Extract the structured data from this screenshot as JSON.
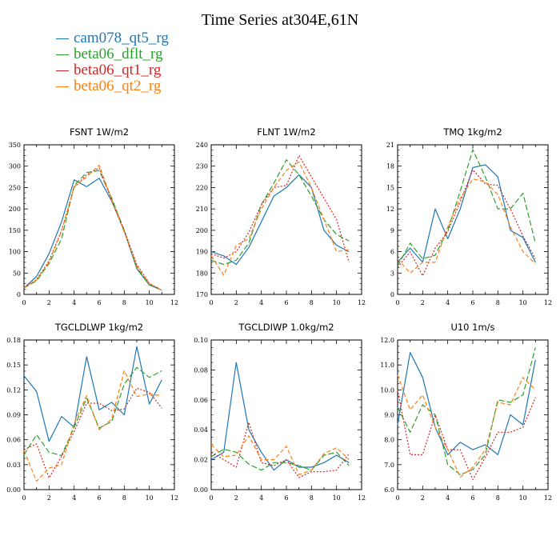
{
  "title": "Time Series at304E,61N",
  "legend": [
    {
      "name": "cam078_qt5_rg",
      "color": "#1f77b4"
    },
    {
      "name": "beta06_dflt_rg",
      "color": "#2ca02c"
    },
    {
      "name": "beta06_qt1_rg",
      "color": "#d62728"
    },
    {
      "name": "beta06_qt2_rg",
      "color": "#ff7f0e"
    }
  ],
  "chart_data": [
    {
      "type": "line",
      "title": "FSNT   1W/m2",
      "x": [
        0,
        1,
        2,
        3,
        4,
        5,
        6,
        7,
        8,
        9,
        10,
        11
      ],
      "xlim": [
        0,
        12
      ],
      "xticks": [
        0,
        2,
        4,
        6,
        8,
        10,
        12
      ],
      "ylim": [
        0,
        350
      ],
      "yticks": [
        0,
        50,
        100,
        150,
        200,
        250,
        300,
        350
      ],
      "ytick_labels": [
        "0",
        "50",
        "100",
        "150",
        "200",
        "250",
        "300",
        "350"
      ],
      "series": [
        {
          "name": "cam078_qt5_rg",
          "values": [
            15,
            42,
            95,
            170,
            268,
            252,
            272,
            218,
            148,
            60,
            22,
            10
          ]
        },
        {
          "name": "beta06_dflt_rg",
          "values": [
            15,
            32,
            72,
            130,
            255,
            285,
            290,
            225,
            150,
            62,
            23,
            10
          ]
        },
        {
          "name": "beta06_qt1_rg",
          "values": [
            15,
            35,
            78,
            150,
            250,
            280,
            296,
            220,
            150,
            70,
            26,
            10
          ]
        },
        {
          "name": "beta06_qt2_rg",
          "values": [
            15,
            34,
            75,
            148,
            252,
            275,
            302,
            222,
            146,
            66,
            25,
            10
          ]
        }
      ]
    },
    {
      "type": "line",
      "title": "FLNT   1W/m2",
      "x": [
        0,
        1,
        2,
        3,
        4,
        5,
        6,
        7,
        8,
        9,
        10,
        11
      ],
      "xlim": [
        0,
        12
      ],
      "xticks": [
        0,
        2,
        4,
        6,
        8,
        10,
        12
      ],
      "ylim": [
        170,
        240
      ],
      "yticks": [
        170,
        180,
        190,
        200,
        210,
        220,
        230,
        240
      ],
      "ytick_labels": [
        "170",
        "180",
        "190",
        "200",
        "210",
        "220",
        "230",
        "240"
      ],
      "series": [
        {
          "name": "cam078_qt5_rg",
          "values": [
            190,
            188,
            184,
            192,
            204,
            216,
            220,
            226,
            220,
            200,
            193,
            190
          ]
        },
        {
          "name": "beta06_dflt_rg",
          "values": [
            186,
            184,
            186,
            194,
            212,
            222,
            233,
            226,
            216,
            205,
            198,
            195
          ]
        },
        {
          "name": "beta06_qt1_rg",
          "values": [
            189,
            187,
            190,
            199,
            212,
            220,
            221,
            235,
            225,
            215,
            205,
            185
          ]
        },
        {
          "name": "beta06_qt2_rg",
          "values": [
            188,
            179,
            193,
            196,
            210,
            220,
            228,
            232,
            220,
            205,
            190,
            191
          ]
        }
      ]
    },
    {
      "type": "line",
      "title": "TMQ   1kg/m2",
      "x": [
        0,
        1,
        2,
        3,
        4,
        5,
        6,
        7,
        8,
        9,
        10,
        11
      ],
      "xlim": [
        0,
        12
      ],
      "xticks": [
        0,
        2,
        4,
        6,
        8,
        10,
        12
      ],
      "ylim": [
        0,
        21
      ],
      "yticks": [
        0,
        3,
        6,
        9,
        12,
        15,
        18,
        21
      ],
      "ytick_labels": [
        "0",
        "3",
        "6",
        "9",
        "12",
        "15",
        "18",
        "21"
      ],
      "series": [
        {
          "name": "cam078_qt5_rg",
          "values": [
            4.5,
            6.5,
            4.5,
            12.0,
            7.8,
            12.0,
            17.8,
            18.2,
            16.5,
            9.0,
            8.0,
            4.5
          ]
        },
        {
          "name": "beta06_dflt_rg",
          "values": [
            4.0,
            7.2,
            5.0,
            5.5,
            9.0,
            14.5,
            20.3,
            16.5,
            12.0,
            12.0,
            14.2,
            7.2
          ]
        },
        {
          "name": "beta06_qt1_rg",
          "values": [
            3.8,
            6.0,
            2.6,
            6.5,
            8.8,
            13.0,
            17.5,
            15.5,
            15.3,
            12.0,
            8.2,
            5.0
          ]
        },
        {
          "name": "beta06_qt2_rg",
          "values": [
            5.0,
            3.0,
            4.5,
            4.5,
            9.5,
            13.5,
            16.2,
            15.8,
            14.0,
            9.5,
            6.0,
            4.3
          ]
        }
      ]
    },
    {
      "type": "line",
      "title": "TGCLDLWP   1kg/m2",
      "x": [
        0,
        1,
        2,
        3,
        4,
        5,
        6,
        7,
        8,
        9,
        10,
        11
      ],
      "xlim": [
        0,
        12
      ],
      "xticks": [
        0,
        2,
        4,
        6,
        8,
        10,
        12
      ],
      "ylim": [
        0,
        0.18
      ],
      "yticks": [
        0,
        0.03,
        0.06,
        0.09,
        0.12,
        0.15,
        0.18
      ],
      "ytick_labels": [
        "0.00",
        "0.03",
        "0.06",
        "0.09",
        "0.12",
        "0.15",
        "0.18"
      ],
      "series": [
        {
          "name": "cam078_qt5_rg",
          "values": [
            0.137,
            0.118,
            0.058,
            0.088,
            0.075,
            0.16,
            0.096,
            0.105,
            0.09,
            0.172,
            0.103,
            0.132
          ]
        },
        {
          "name": "beta06_dflt_rg",
          "values": [
            0.042,
            0.066,
            0.045,
            0.041,
            0.075,
            0.11,
            0.074,
            0.082,
            0.127,
            0.147,
            0.135,
            0.143
          ]
        },
        {
          "name": "beta06_qt1_rg",
          "values": [
            0.048,
            0.055,
            0.014,
            0.04,
            0.07,
            0.104,
            0.104,
            0.095,
            0.097,
            0.122,
            0.117,
            0.098
          ]
        },
        {
          "name": "beta06_qt2_rg",
          "values": [
            0.047,
            0.01,
            0.026,
            0.03,
            0.08,
            0.113,
            0.072,
            0.085,
            0.143,
            0.112,
            0.115,
            0.113
          ]
        }
      ]
    },
    {
      "type": "line",
      "title": "TGCLDIWP   1.0kg/m2",
      "x": [
        0,
        1,
        2,
        3,
        4,
        5,
        6,
        7,
        8,
        9,
        10,
        11
      ],
      "xlim": [
        0,
        12
      ],
      "xticks": [
        0,
        2,
        4,
        6,
        8,
        10,
        12
      ],
      "ylim": [
        0,
        0.1
      ],
      "yticks": [
        0,
        0.02,
        0.04,
        0.06,
        0.08,
        0.1
      ],
      "ytick_labels": [
        "0.00",
        "0.02",
        "0.04",
        "0.06",
        "0.08",
        "0.10"
      ],
      "series": [
        {
          "name": "cam078_qt5_rg",
          "values": [
            0.02,
            0.025,
            0.085,
            0.04,
            0.025,
            0.013,
            0.02,
            0.015,
            0.015,
            0.018,
            0.023,
            0.018
          ]
        },
        {
          "name": "beta06_dflt_rg",
          "values": [
            0.022,
            0.027,
            0.025,
            0.017,
            0.013,
            0.018,
            0.018,
            0.016,
            0.013,
            0.023,
            0.025,
            0.016
          ]
        },
        {
          "name": "beta06_qt1_rg",
          "values": [
            0.025,
            0.02,
            0.015,
            0.045,
            0.018,
            0.016,
            0.02,
            0.008,
            0.012,
            0.012,
            0.013,
            0.024
          ]
        },
        {
          "name": "beta06_qt2_rg",
          "values": [
            0.03,
            0.022,
            0.023,
            0.036,
            0.02,
            0.02,
            0.029,
            0.01,
            0.013,
            0.024,
            0.028,
            0.02
          ]
        }
      ]
    },
    {
      "type": "line",
      "title": "U10   1m/s",
      "x": [
        0,
        1,
        2,
        3,
        4,
        5,
        6,
        7,
        8,
        9,
        10,
        11
      ],
      "xlim": [
        0,
        12
      ],
      "xticks": [
        0,
        2,
        4,
        6,
        8,
        10,
        12
      ],
      "ylim": [
        6.0,
        12.0
      ],
      "yticks": [
        6,
        7,
        8,
        9,
        10,
        11,
        12
      ],
      "ytick_labels": [
        "6.0",
        "7.0",
        "8.0",
        "9.0",
        "10.0",
        "11.0",
        "12.0"
      ],
      "series": [
        {
          "name": "cam078_qt5_rg",
          "values": [
            8.6,
            11.5,
            10.5,
            8.5,
            7.4,
            7.9,
            7.6,
            7.8,
            7.4,
            9.0,
            8.6,
            11.2
          ]
        },
        {
          "name": "beta06_dflt_rg",
          "values": [
            9.3,
            8.3,
            9.4,
            9.0,
            7.0,
            6.6,
            6.8,
            7.4,
            9.6,
            9.5,
            9.8,
            11.7
          ]
        },
        {
          "name": "beta06_qt1_rg",
          "values": [
            10.0,
            7.4,
            7.4,
            9.0,
            7.6,
            7.6,
            6.4,
            7.3,
            8.3,
            8.3,
            8.5,
            9.7
          ]
        },
        {
          "name": "beta06_qt2_rg",
          "values": [
            10.6,
            9.2,
            9.8,
            8.5,
            7.6,
            6.5,
            6.9,
            7.6,
            9.5,
            9.4,
            10.5,
            10.0
          ]
        }
      ]
    }
  ]
}
